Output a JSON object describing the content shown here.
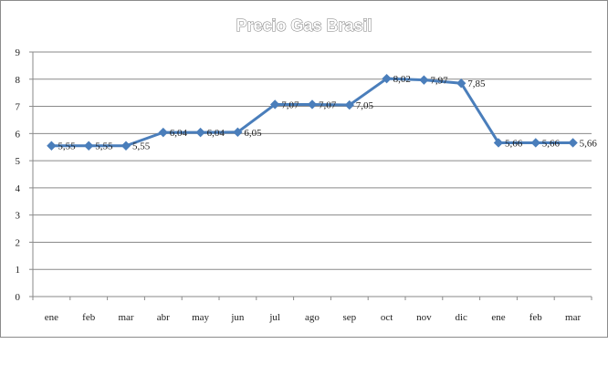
{
  "chart_data": {
    "type": "line",
    "title": "Precio Gas Brasil",
    "categories": [
      "ene",
      "feb",
      "mar",
      "abr",
      "may",
      "jun",
      "jul",
      "ago",
      "sep",
      "oct",
      "nov",
      "dic",
      "ene",
      "feb",
      "mar"
    ],
    "series": [
      {
        "values": [
          5.55,
          5.55,
          5.55,
          6.04,
          6.04,
          6.05,
          7.07,
          7.07,
          7.05,
          8.02,
          7.97,
          7.85,
          5.66,
          5.66,
          5.66
        ],
        "labels": [
          "5,55",
          "5,55",
          "5,55",
          "6,04",
          "6,04",
          "6,05",
          "7,07",
          "7,07",
          "7,05",
          "8,02",
          "7,97",
          "7,85",
          "5,66",
          "5,66",
          "5,66"
        ],
        "color": "#4a7ebb"
      }
    ],
    "ylim": [
      0,
      9
    ],
    "yticks": [
      "0",
      "1",
      "2",
      "3",
      "4",
      "5",
      "6",
      "7",
      "8",
      "9"
    ],
    "grid": true,
    "legend": "none"
  }
}
